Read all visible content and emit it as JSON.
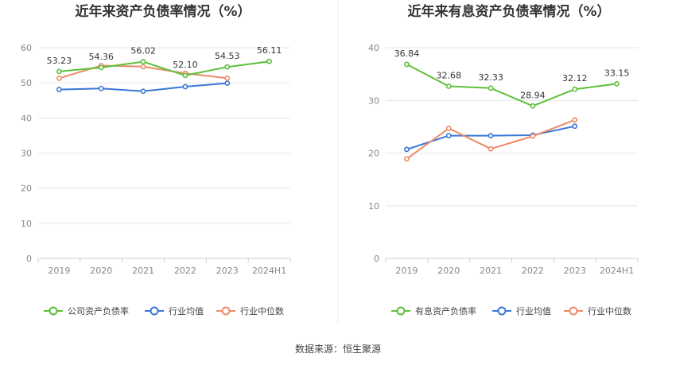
{
  "source_text": "数据来源：恒生聚源",
  "colors": {
    "green": "#5dc03a",
    "blue": "#3a77d8",
    "orange": "#ee8a66",
    "grid": "#e6e6e6",
    "axis": "#cccccc",
    "divider": "#eeeeee"
  },
  "chart_data": [
    {
      "type": "line",
      "title": "近年来资产负债率情况（%）",
      "xlabel": "",
      "ylabel": "",
      "categories": [
        "2019",
        "2020",
        "2021",
        "2022",
        "2023",
        "2024H1"
      ],
      "ylim": [
        0,
        60
      ],
      "yticks": [
        0,
        10,
        20,
        30,
        40,
        50,
        60
      ],
      "grid": true,
      "legend_position": "bottom",
      "series": [
        {
          "name": "公司资产负债率",
          "color": "#5dc03a",
          "values": [
            53.23,
            54.36,
            56.02,
            52.1,
            54.53,
            56.11
          ],
          "labels": [
            "53.23",
            "54.36",
            "56.02",
            "52.10",
            "54.53",
            "56.11"
          ]
        },
        {
          "name": "行业均值",
          "color": "#3a77d8",
          "values": [
            48.1,
            48.4,
            47.6,
            48.9,
            49.9,
            null
          ],
          "labels": []
        },
        {
          "name": "行业中位数",
          "color": "#ee8a66",
          "values": [
            51.3,
            54.9,
            54.6,
            52.7,
            51.3,
            null
          ],
          "labels": []
        }
      ]
    },
    {
      "type": "line",
      "title": "近年来有息资产负债率情况（%）",
      "xlabel": "",
      "ylabel": "",
      "categories": [
        "2019",
        "2020",
        "2021",
        "2022",
        "2023",
        "2024H1"
      ],
      "ylim": [
        0,
        40
      ],
      "yticks": [
        0,
        10,
        20,
        30,
        40
      ],
      "grid": true,
      "legend_position": "bottom",
      "series": [
        {
          "name": "有息资产负债率",
          "color": "#5dc03a",
          "values": [
            36.84,
            32.68,
            32.33,
            28.94,
            32.12,
            33.15
          ],
          "labels": [
            "36.84",
            "32.68",
            "32.33",
            "28.94",
            "32.12",
            "33.15"
          ]
        },
        {
          "name": "行业均值",
          "color": "#3a77d8",
          "values": [
            20.7,
            23.3,
            23.3,
            23.4,
            25.1,
            null
          ],
          "labels": []
        },
        {
          "name": "行业中位数",
          "color": "#ee8a66",
          "values": [
            18.9,
            24.7,
            20.8,
            23.2,
            26.3,
            null
          ],
          "labels": []
        }
      ]
    }
  ]
}
